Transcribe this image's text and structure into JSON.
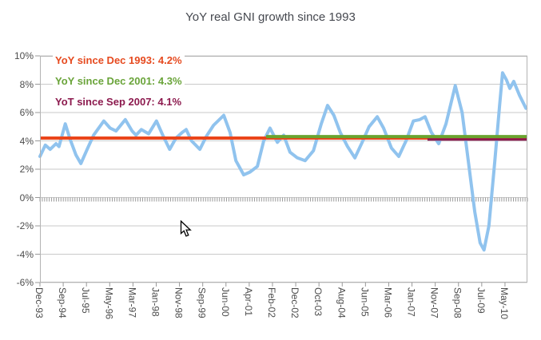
{
  "title": "YoY real GNI growth since 1993",
  "annotations": [
    {
      "label": "YoY since Dec 1993: 4.2%",
      "color": "#e64a1f"
    },
    {
      "label": "YoY since Dec 2001: 4.3%",
      "color": "#6aa43a"
    },
    {
      "label": "YoT since Sep 2007: 4.1%",
      "color": "#8c1a4e"
    }
  ],
  "theme": {
    "background": "#ffffff",
    "grid": "#c9c9c9",
    "border": "#b3b3b3",
    "tick": "#999999",
    "axis_text": "#4c4c4c",
    "title_text": "#45484f"
  },
  "cursor": {
    "visible": true
  },
  "chart_data": {
    "type": "line",
    "title": "YoY real GNI growth since 1993",
    "xlabel": "",
    "ylabel": "",
    "y_unit": "%",
    "ylim": [
      -6,
      10
    ],
    "grid": true,
    "legend_position": "top-left (as colored annotation text)",
    "y_ticks": [
      "10%",
      "8%",
      "6%",
      "4%",
      "2%",
      "0%",
      "-2%",
      "-4%",
      "-6%"
    ],
    "x_tick_labels": [
      "Dec-93",
      "Sep-94",
      "Jul-95",
      "May-96",
      "Mar-97",
      "Jan-98",
      "Nov-98",
      "Sep-99",
      "Jun-00",
      "Apr-01",
      "Feb-02",
      "Dec-02",
      "Oct-03",
      "Aug-04",
      "Jun-05",
      "Mar-06",
      "Jan-07",
      "Nov-07",
      "Sep-08",
      "Jul-09",
      "May-10"
    ],
    "x_label_span": 0.954,
    "x_minor_ticks": 209,
    "series": [
      {
        "name": "YoY real GNI growth",
        "color": "#90c3ee",
        "width": 4,
        "points": [
          [
            0.0,
            2.9
          ],
          [
            0.011,
            3.7
          ],
          [
            0.021,
            3.4
          ],
          [
            0.033,
            3.8
          ],
          [
            0.039,
            3.6
          ],
          [
            0.052,
            5.2
          ],
          [
            0.062,
            4.1
          ],
          [
            0.074,
            3.0
          ],
          [
            0.084,
            2.4
          ],
          [
            0.098,
            3.5
          ],
          [
            0.11,
            4.4
          ],
          [
            0.131,
            5.4
          ],
          [
            0.144,
            4.9
          ],
          [
            0.156,
            4.7
          ],
          [
            0.175,
            5.5
          ],
          [
            0.189,
            4.7
          ],
          [
            0.197,
            4.4
          ],
          [
            0.208,
            4.8
          ],
          [
            0.223,
            4.5
          ],
          [
            0.239,
            5.4
          ],
          [
            0.252,
            4.4
          ],
          [
            0.266,
            3.4
          ],
          [
            0.279,
            4.2
          ],
          [
            0.292,
            4.6
          ],
          [
            0.3,
            4.8
          ],
          [
            0.311,
            4.0
          ],
          [
            0.328,
            3.4
          ],
          [
            0.341,
            4.3
          ],
          [
            0.356,
            5.1
          ],
          [
            0.377,
            5.8
          ],
          [
            0.39,
            4.6
          ],
          [
            0.402,
            2.6
          ],
          [
            0.418,
            1.6
          ],
          [
            0.431,
            1.8
          ],
          [
            0.446,
            2.2
          ],
          [
            0.459,
            4.0
          ],
          [
            0.472,
            4.9
          ],
          [
            0.487,
            3.9
          ],
          [
            0.5,
            4.4
          ],
          [
            0.513,
            3.2
          ],
          [
            0.528,
            2.8
          ],
          [
            0.544,
            2.6
          ],
          [
            0.561,
            3.3
          ],
          [
            0.577,
            5.2
          ],
          [
            0.59,
            6.5
          ],
          [
            0.603,
            5.8
          ],
          [
            0.616,
            4.6
          ],
          [
            0.631,
            3.6
          ],
          [
            0.646,
            2.8
          ],
          [
            0.661,
            3.9
          ],
          [
            0.675,
            5.0
          ],
          [
            0.692,
            5.7
          ],
          [
            0.705,
            4.9
          ],
          [
            0.721,
            3.5
          ],
          [
            0.736,
            2.9
          ],
          [
            0.751,
            4.0
          ],
          [
            0.766,
            5.4
          ],
          [
            0.779,
            5.5
          ],
          [
            0.79,
            5.7
          ],
          [
            0.803,
            4.6
          ],
          [
            0.818,
            3.8
          ],
          [
            0.833,
            5.2
          ],
          [
            0.852,
            7.9
          ],
          [
            0.866,
            6.0
          ],
          [
            0.879,
            2.5
          ],
          [
            0.892,
            -1.0
          ],
          [
            0.903,
            -3.2
          ],
          [
            0.911,
            -3.7
          ],
          [
            0.921,
            -2.0
          ],
          [
            0.933,
            2.5
          ],
          [
            0.943,
            6.5
          ],
          [
            0.949,
            8.8
          ],
          [
            0.957,
            8.3
          ],
          [
            0.964,
            7.7
          ],
          [
            0.972,
            8.2
          ],
          [
            0.984,
            7.2
          ],
          [
            0.997,
            6.3
          ]
        ]
      }
    ],
    "reference_lines": [
      {
        "name": "YoY since Dec 1993",
        "value": 4.2,
        "x_start": 0.0,
        "x_end": 1.0,
        "color": "#ea451a",
        "width": 4
      },
      {
        "name": "YoY since Dec 2001",
        "value": 4.3,
        "x_start": 0.464,
        "x_end": 1.0,
        "color": "#6aa42f",
        "width": 4
      },
      {
        "name": "YoT since Sep 2007",
        "value": 4.1,
        "x_start": 0.795,
        "x_end": 1.0,
        "color": "#8c1a4e",
        "width": 3
      }
    ]
  }
}
